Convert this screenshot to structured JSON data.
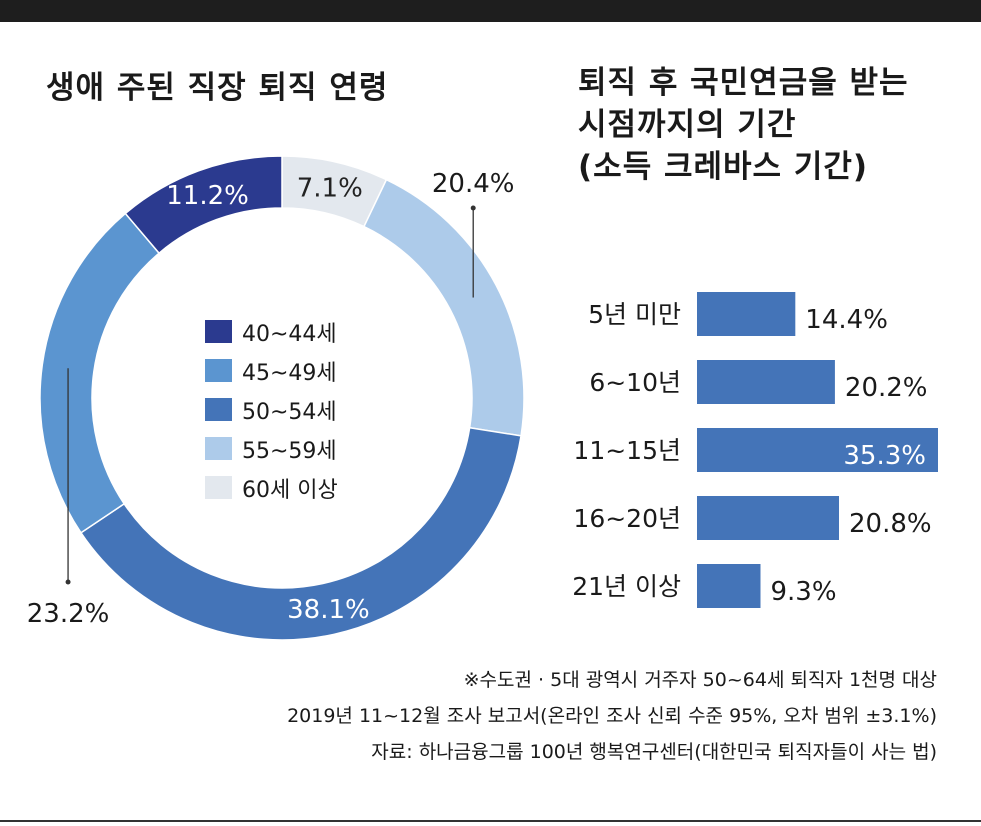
{
  "chart_data": [
    {
      "type": "pie",
      "title": "생애 주된 직장 퇴직 연령",
      "categories": [
        "40~44세",
        "45~49세",
        "50~54세",
        "55~59세",
        "60세 이상"
      ],
      "values": [
        11.2,
        23.2,
        38.1,
        20.4,
        7.1
      ],
      "value_labels": [
        "11.2%",
        "23.2%",
        "38.1%",
        "20.4%",
        "7.1%"
      ],
      "colors": [
        "#2b3a8f",
        "#5b95d0",
        "#4474b8",
        "#adcbea",
        "#e3e8ee"
      ],
      "legend_position": "center"
    },
    {
      "type": "bar",
      "orientation": "horizontal",
      "title_lines": [
        "퇴직 후 국민연금을 받는",
        "시점까지의 기간",
        "(소득 크레바스 기간)"
      ],
      "categories": [
        "5년 미만",
        "6~10년",
        "11~15년",
        "16~20년",
        "21년 이상"
      ],
      "values": [
        14.4,
        20.2,
        35.3,
        20.8,
        9.3
      ],
      "value_labels": [
        "14.4%",
        "20.2%",
        "35.3%",
        "20.8%",
        "9.3%"
      ],
      "color": "#4474b8"
    }
  ],
  "footnotes": [
    "※수도권 · 5대 광역시 거주자 50~64세 퇴직자 1천명 대상",
    "2019년 11~12월 조사 보고서(온라인 조사 신뢰 수준 95%, 오차 범위 ±3.1%)",
    "자료: 하나금융그룹 100년 행복연구센터(대한민국 퇴직자들이 사는 법)"
  ]
}
